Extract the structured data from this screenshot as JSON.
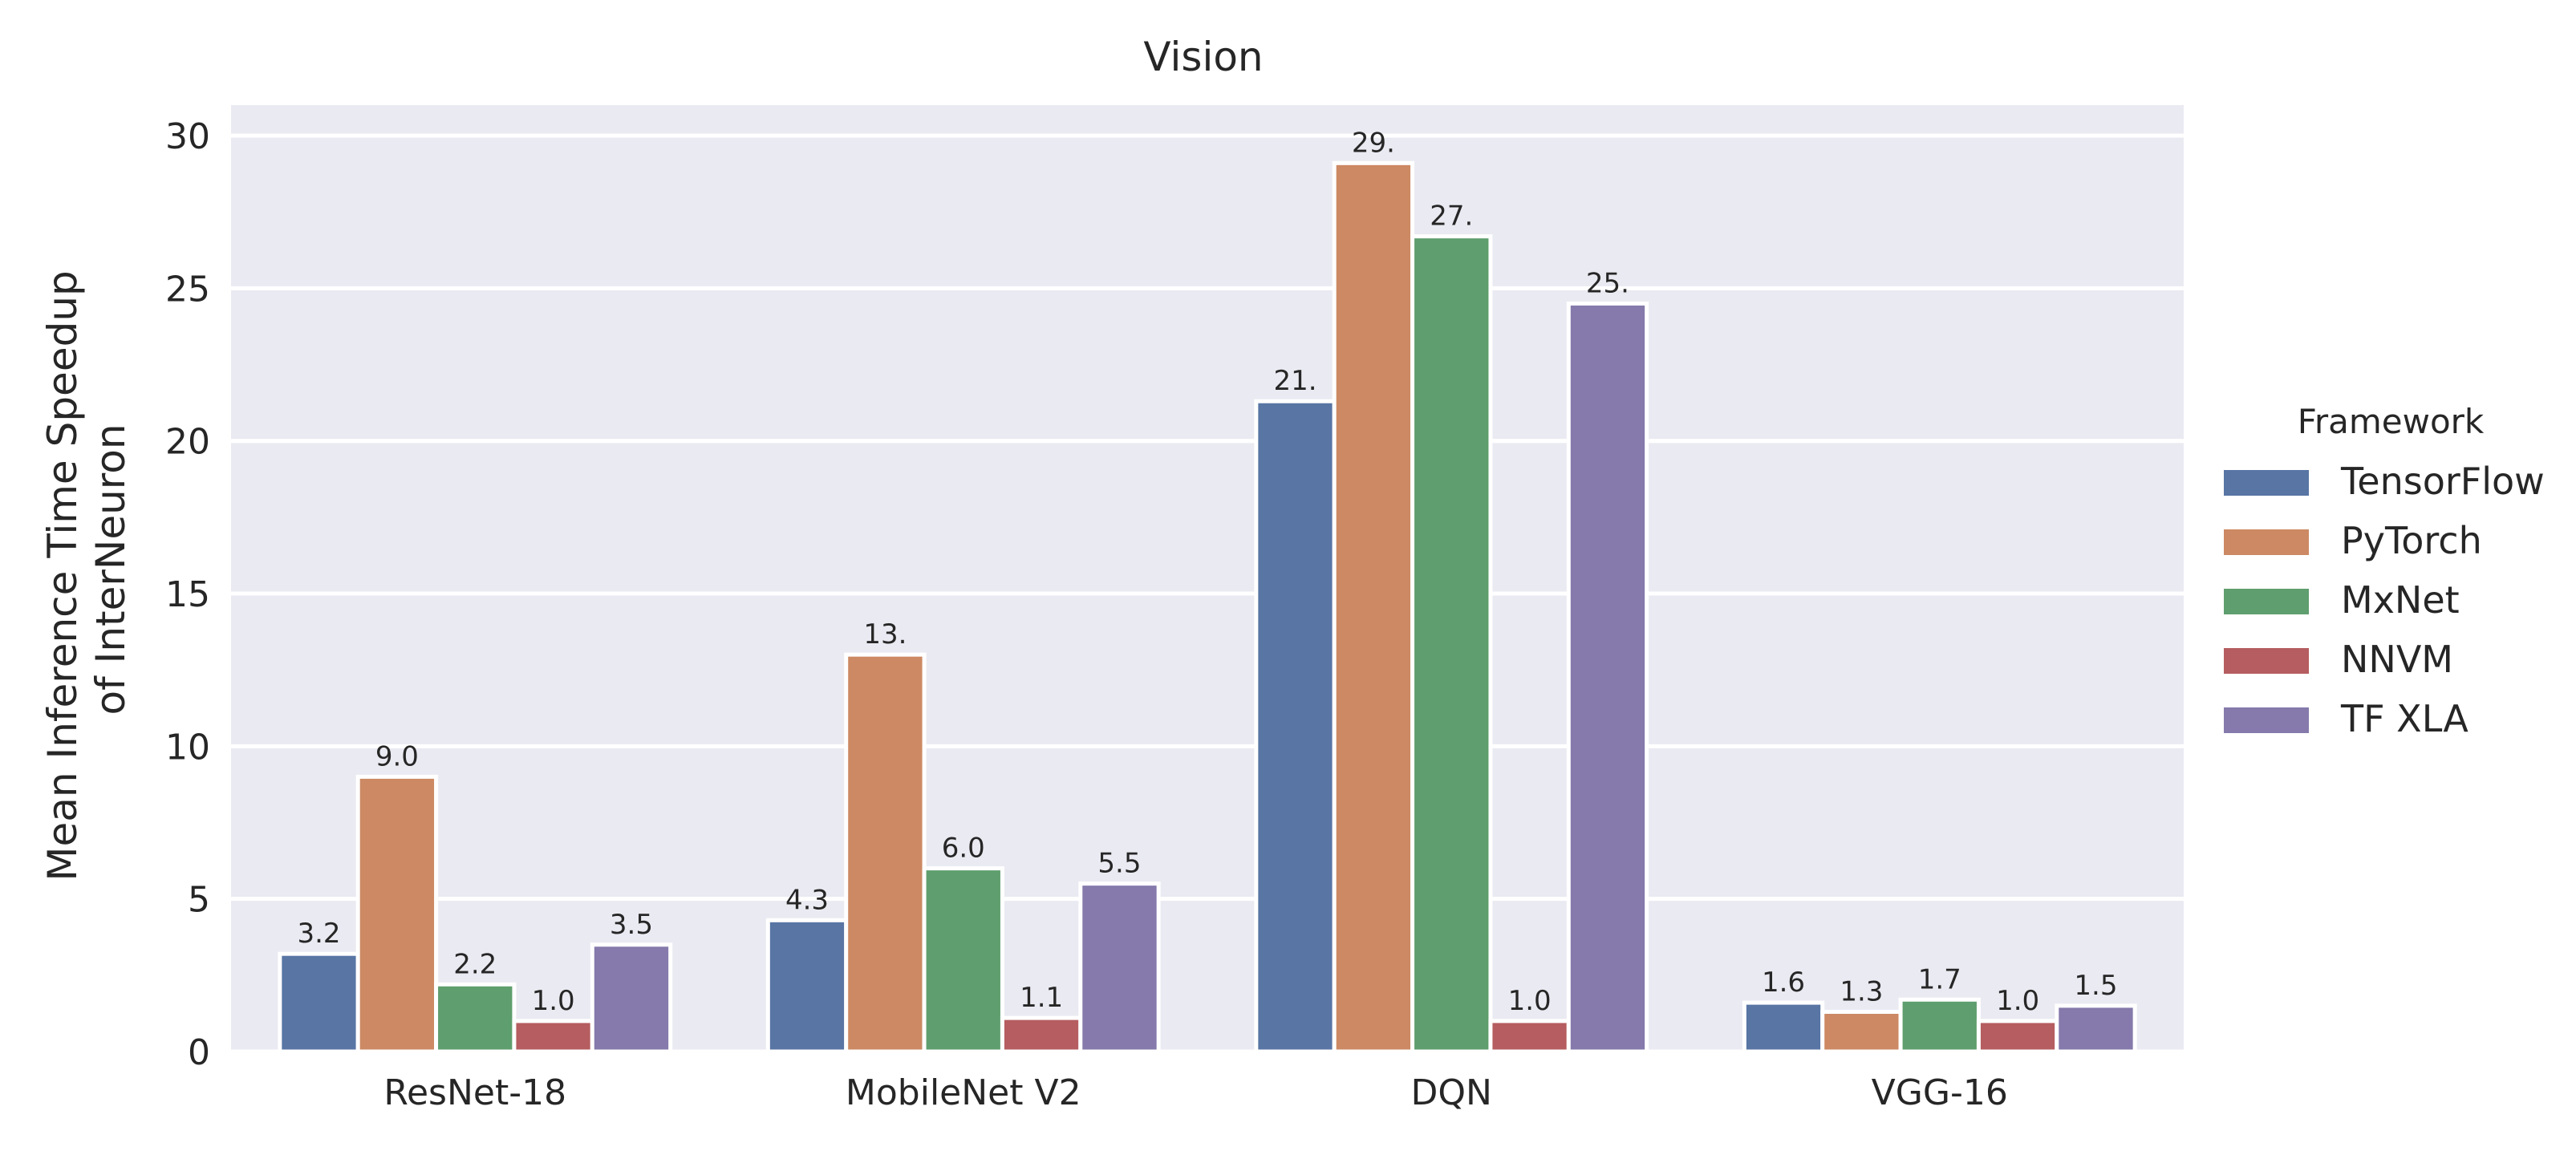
{
  "chart_data": {
    "type": "bar",
    "title": "Vision",
    "xlabel": "",
    "ylabel": "Mean Inference Time Speedup of InterNeuron",
    "ylabel_lines": [
      "Mean Inference Time Speedup",
      "of InterNeuron"
    ],
    "categories": [
      "ResNet-18",
      "MobileNet V2",
      "DQN",
      "VGG-16"
    ],
    "series": [
      {
        "name": "TensorFlow",
        "color": "#5875a4",
        "values": [
          3.2,
          4.3,
          21.3,
          1.6
        ],
        "labels": [
          "3.2",
          "4.3",
          "21.",
          "1.6"
        ]
      },
      {
        "name": "PyTorch",
        "color": "#cc8963",
        "values": [
          9.0,
          13.0,
          29.1,
          1.3
        ],
        "labels": [
          "9.0",
          "13.",
          "29.",
          "1.3"
        ]
      },
      {
        "name": "MxNet",
        "color": "#5f9e6e",
        "values": [
          2.2,
          6.0,
          26.7,
          1.7
        ],
        "labels": [
          "2.2",
          "6.0",
          "27.",
          "1.7"
        ]
      },
      {
        "name": "NNVM",
        "color": "#b55d60",
        "values": [
          1.0,
          1.1,
          1.0,
          1.0
        ],
        "labels": [
          "1.0",
          "1.1",
          "1.0",
          "1.0"
        ]
      },
      {
        "name": "TF XLA",
        "color": "#857aab",
        "values": [
          3.5,
          5.5,
          24.5,
          1.5
        ],
        "labels": [
          "3.5",
          "5.5",
          "25.",
          "1.5"
        ]
      }
    ],
    "yticks": [
      0,
      5,
      10,
      15,
      20,
      25,
      30
    ],
    "ylim": [
      0,
      31
    ],
    "legend_title": "Framework",
    "legend_position": "right",
    "grid": true
  }
}
